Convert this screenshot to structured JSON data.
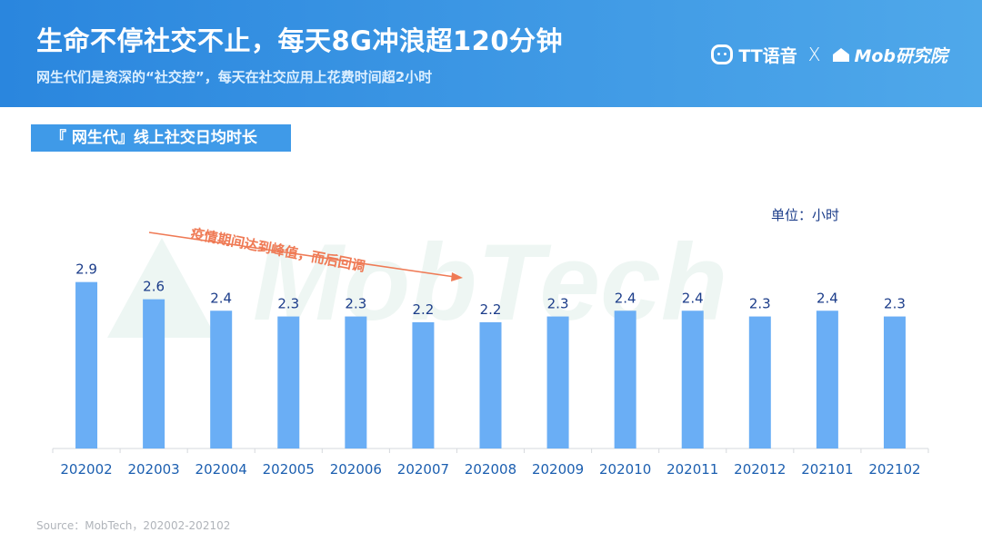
{
  "header": {
    "title": "生命不停社交不止，每天8G冲浪超120分钟",
    "subtitle": "网生代们是资深的“社交控”，每天在社交应用上花费时间超2小时",
    "logo_tt": "TT语音",
    "logo_x": "X",
    "logo_mob": "Mob研究院"
  },
  "section_label": "『 网生代』线上社交日均时长",
  "unit_label": "单位：小时",
  "annotation": "疫情期间达到峰值，而后回调",
  "source": "Source：MobTech，202002-202102",
  "colors": {
    "header_start": "#2a86de",
    "header_end": "#4fa8ea",
    "bar": "#6aaef5",
    "accent_text": "#1c3d8a",
    "annotation": "#ef7a55"
  },
  "chart_data": {
    "type": "bar",
    "title": "『 网生代』线上社交日均时长",
    "unit": "单位：小时",
    "categories": [
      "202002",
      "202003",
      "202004",
      "202005",
      "202006",
      "202007",
      "202008",
      "202009",
      "202010",
      "202011",
      "202012",
      "202101",
      "202102"
    ],
    "values": [
      2.9,
      2.6,
      2.4,
      2.3,
      2.3,
      2.2,
      2.2,
      2.3,
      2.4,
      2.4,
      2.3,
      2.4,
      2.3
    ],
    "ylim": [
      0,
      3.1
    ],
    "grid": false,
    "annotation": "疫情期间达到峰值，而后回调"
  }
}
